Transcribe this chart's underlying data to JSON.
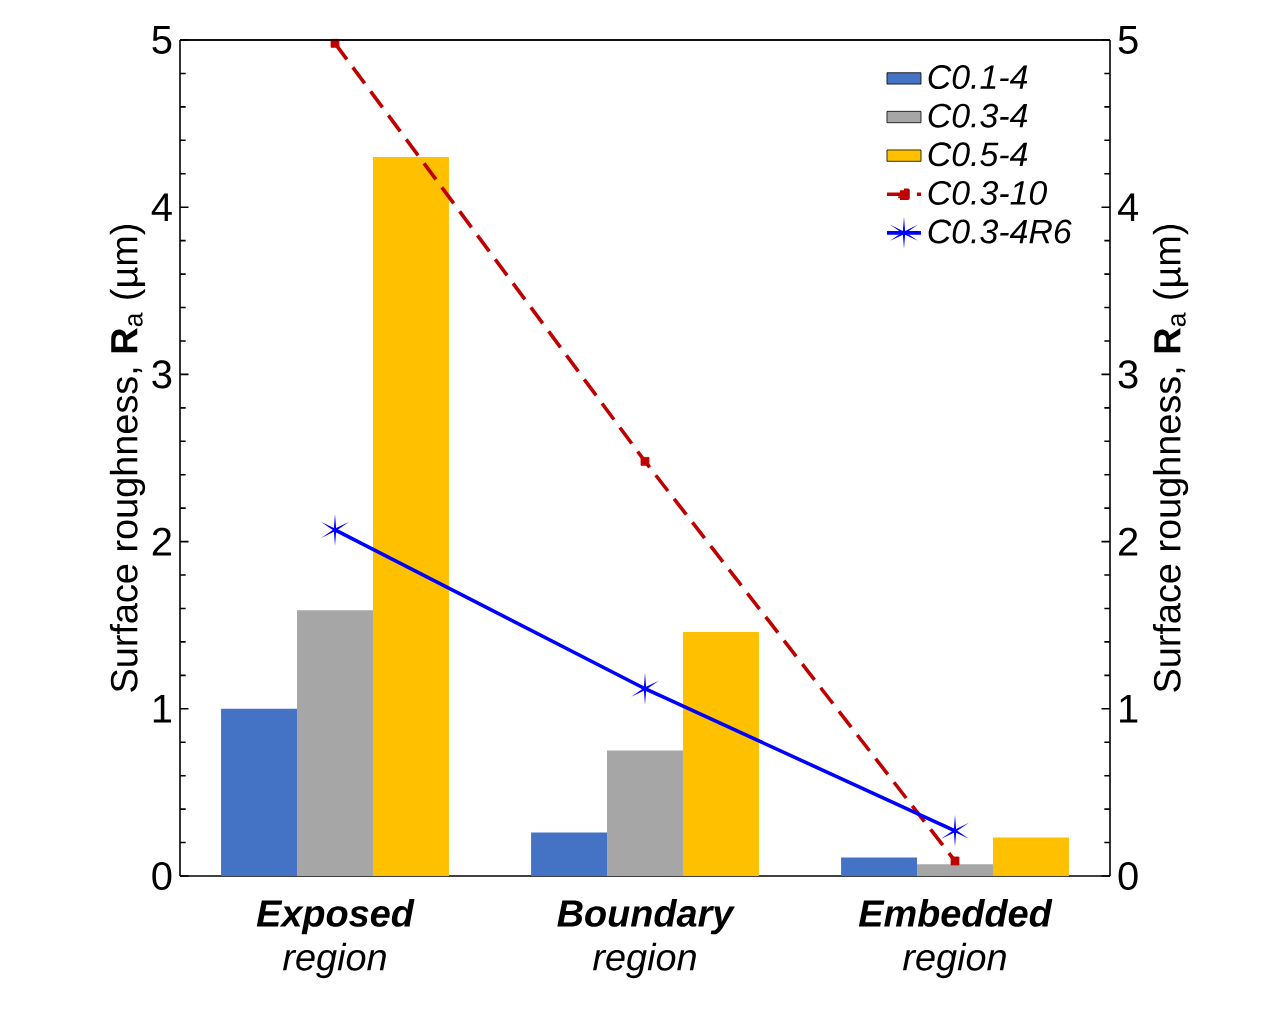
{
  "chart_data": {
    "type": "bar",
    "categories": [
      "**Exposed** region",
      "**Boundary** region",
      "**Embedded** region"
    ],
    "ylabel": "Surface roughness, **R**$_{a}$ (µm)",
    "y2label": "Surface roughness, **R**$_{a}$ (µm)",
    "ylim": [
      0,
      5
    ],
    "yticks": [
      0,
      1,
      2,
      3,
      4,
      5
    ],
    "y2lim": [
      0,
      5
    ],
    "y2ticks": [
      0,
      1,
      2,
      3,
      4,
      5
    ],
    "legend": "top right",
    "series": [
      {
        "name": "C0.1-4",
        "color": "#4472c4",
        "values": [
          1.0,
          0.26,
          0.11
        ]
      },
      {
        "name": "C0.3-4",
        "color": "#a6a6a6",
        "values": [
          1.59,
          0.75,
          0.07
        ]
      },
      {
        "name": "C0.5-4",
        "color": "#ffc000",
        "values": [
          4.3,
          1.46,
          0.23
        ]
      },
      {
        "name": "C0.3-10",
        "type": "line",
        "color": "#c00000",
        "line_style": "dashed",
        "marker": "square",
        "values": [
          4.98,
          2.48,
          0.09
        ]
      },
      {
        "name": "C0.3-4R6",
        "type": "line",
        "color": "#0000ff",
        "line_style": "solid",
        "marker": "cross",
        "values": [
          2.07,
          1.12,
          0.27
        ]
      }
    ]
  }
}
